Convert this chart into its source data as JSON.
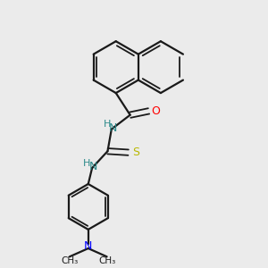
{
  "background_color": "#ebebeb",
  "bond_color": "#1a1a1a",
  "figsize": [
    3.0,
    3.0
  ],
  "dpi": 100,
  "xlim": [
    0,
    10
  ],
  "ylim": [
    0,
    10
  ]
}
